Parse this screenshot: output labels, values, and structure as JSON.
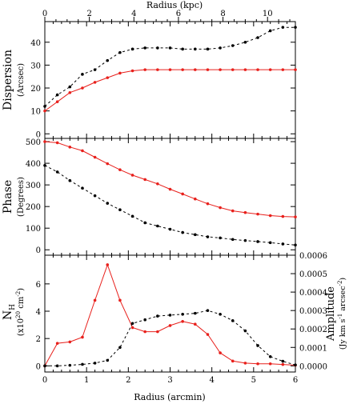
{
  "figure": {
    "top_axis_label": "Radius (kpc)",
    "bottom_axis_label": "Radius (arcmin)",
    "colors": {
      "red": "#e8201c",
      "black": "#000000",
      "axis": "#000000"
    }
  },
  "chart_data": [
    {
      "type": "line",
      "panel": "dispersion",
      "ylabel": "Dispersion",
      "ylabel_unit": "(Arcsec)",
      "xlim": [
        0,
        6
      ],
      "ylim": [
        -2,
        49
      ],
      "yticks": [
        0,
        10,
        20,
        30,
        40
      ],
      "series": [
        {
          "color": "#e8201c",
          "style": "solid",
          "marker": "filled-circle",
          "x": [
            0,
            0.3,
            0.6,
            0.9,
            1.2,
            1.5,
            1.8,
            2.1,
            2.4,
            2.7,
            3.0,
            3.3,
            3.6,
            3.9,
            4.2,
            4.5,
            4.8,
            5.1,
            5.4,
            5.7,
            6.0
          ],
          "y": [
            10,
            14,
            18,
            20,
            22.5,
            24.5,
            26.5,
            27.5,
            28,
            28,
            28,
            28,
            28,
            28,
            28,
            28,
            28,
            28,
            28,
            28,
            28
          ]
        },
        {
          "color": "#000000",
          "style": "dashed",
          "marker": "filled-circle",
          "x": [
            0,
            0.3,
            0.6,
            0.9,
            1.2,
            1.5,
            1.8,
            2.1,
            2.4,
            2.7,
            3.0,
            3.3,
            3.6,
            3.9,
            4.2,
            4.5,
            4.8,
            5.1,
            5.4,
            5.7,
            6.0
          ],
          "y": [
            12,
            17,
            20.5,
            26,
            28,
            32,
            35.5,
            37,
            37.5,
            37.5,
            37.5,
            37,
            37,
            37,
            37.5,
            38.5,
            40,
            42,
            45,
            46.5,
            46.5
          ]
        }
      ]
    },
    {
      "type": "line",
      "panel": "phase",
      "ylabel": "Phase",
      "ylabel_unit": "(Degrees)",
      "xlim": [
        0,
        6
      ],
      "ylim": [
        -25,
        515
      ],
      "yticks": [
        0,
        100,
        200,
        300,
        400,
        500
      ],
      "series": [
        {
          "color": "#e8201c",
          "style": "solid",
          "marker": "filled-circle",
          "x": [
            0,
            0.3,
            0.6,
            0.9,
            1.2,
            1.5,
            1.8,
            2.1,
            2.4,
            2.7,
            3.0,
            3.3,
            3.6,
            3.9,
            4.2,
            4.5,
            4.8,
            5.1,
            5.4,
            5.7,
            6.0
          ],
          "y": [
            500,
            495,
            475,
            458,
            428,
            398,
            370,
            345,
            325,
            305,
            280,
            258,
            235,
            213,
            195,
            180,
            172,
            165,
            158,
            154,
            152
          ]
        },
        {
          "color": "#000000",
          "style": "dashed",
          "marker": "filled-circle",
          "x": [
            0,
            0.3,
            0.6,
            0.9,
            1.2,
            1.5,
            1.8,
            2.1,
            2.4,
            2.7,
            3.0,
            3.3,
            3.6,
            3.9,
            4.2,
            4.5,
            4.8,
            5.1,
            5.4,
            5.7,
            6.0
          ],
          "y": [
            390,
            360,
            320,
            285,
            250,
            215,
            185,
            155,
            125,
            110,
            95,
            80,
            70,
            60,
            55,
            48,
            43,
            38,
            33,
            27,
            22
          ]
        }
      ]
    },
    {
      "type": "line",
      "panel": "column-density",
      "ylabel": "N",
      "ylabel_sub": "H",
      "ylabel_unit_left": "(x10",
      "ylabel_unit_exp": "20",
      "ylabel_unit_right": " cm",
      "ylabel_unit_exp2": "-2",
      "ylabel_unit_close": ")",
      "right_ylabel": "Amplitude",
      "right_ylabel_unit": "(Jy km s",
      "right_ylabel_unit_exp": "-1",
      "right_ylabel_unit_mid": " arcsec",
      "right_ylabel_unit_exp2": "-2",
      "right_ylabel_unit_close": ")",
      "xlim": [
        0,
        6
      ],
      "ylim": [
        -0.45,
        8.1
      ],
      "yticks": [
        0,
        2,
        4,
        6
      ],
      "right_ylim": [
        -3.33e-05,
        0.0006
      ],
      "right_yticks": [
        "0.0000",
        "0.0001",
        "0.0002",
        "0.0003",
        "0.0004",
        "0.0005",
        "0.0006"
      ],
      "xticks": [
        0,
        1,
        2,
        3,
        4,
        5,
        6
      ],
      "series": [
        {
          "color": "#e8201c",
          "style": "solid",
          "marker": "filled-circle",
          "axis": "left",
          "x": [
            0,
            0.3,
            0.6,
            0.9,
            1.2,
            1.5,
            1.8,
            2.1,
            2.4,
            2.7,
            3.0,
            3.3,
            3.6,
            3.9,
            4.2,
            4.5,
            4.8,
            5.1,
            5.4,
            5.7,
            6.0
          ],
          "y": [
            0,
            1.65,
            1.75,
            2.1,
            4.8,
            7.4,
            4.8,
            2.8,
            2.5,
            2.5,
            2.95,
            3.25,
            3.05,
            2.3,
            0.95,
            0.35,
            0.2,
            0.15,
            0.15,
            0.1,
            0.05
          ]
        },
        {
          "color": "#000000",
          "style": "dashed",
          "marker": "filled-circle",
          "axis": "right",
          "x": [
            0,
            0.3,
            0.6,
            0.9,
            1.2,
            1.5,
            1.8,
            2.1,
            2.4,
            2.7,
            3.0,
            3.3,
            3.6,
            3.9,
            4.2,
            4.5,
            4.8,
            5.1,
            5.4,
            5.7,
            6.0
          ],
          "y": [
            0,
            0,
            3e-06,
            8e-06,
            1.5e-05,
            3e-05,
            0.0001,
            0.00023,
            0.00025,
            0.00027,
            0.000275,
            0.00028,
            0.000285,
            0.0003,
            0.00028,
            0.000245,
            0.00019,
            0.00011,
            5e-05,
            2.5e-05,
            5e-06
          ]
        }
      ]
    }
  ],
  "top_axis": {
    "xlim_kpc": [
      0,
      11.25
    ],
    "ticks": [
      0,
      2,
      4,
      6,
      8,
      10
    ]
  }
}
